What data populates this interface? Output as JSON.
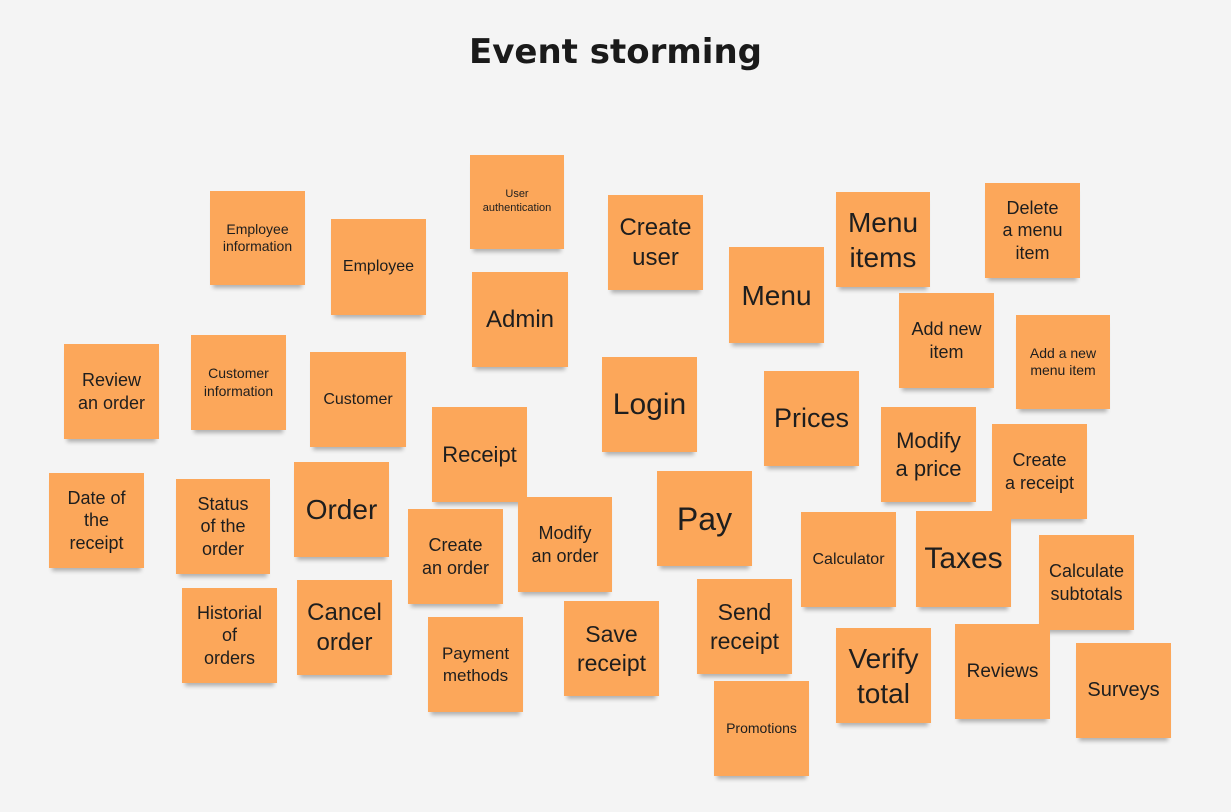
{
  "title": "Event storming",
  "colors": {
    "note": "#fca75a",
    "background": "#f4f4f4"
  },
  "notes": [
    "Employee\ninformation",
    "Employee",
    "User\nauthentication",
    "Admin",
    "Create\nuser",
    "Menu",
    "Menu\nitems",
    "Delete\na menu\nitem",
    "Add new\nitem",
    "Add a new\nmenu item",
    "Review\nan order",
    "Customer\ninformation",
    "Customer",
    "Login",
    "Prices",
    "Modify\na price",
    "Create\na receipt",
    "Receipt",
    "Date of\nthe\nreceipt",
    "Status\nof the\norder",
    "Order",
    "Create\nan order",
    "Modify\nan order",
    "Pay",
    "Calculator",
    "Taxes",
    "Calculate\nsubtotals",
    "Historial\nof\norders",
    "Cancel\norder",
    "Payment\nmethods",
    "Save\nreceipt",
    "Send\nreceipt",
    "Verify\ntotal",
    "Reviews",
    "Surveys",
    "Promotions"
  ]
}
